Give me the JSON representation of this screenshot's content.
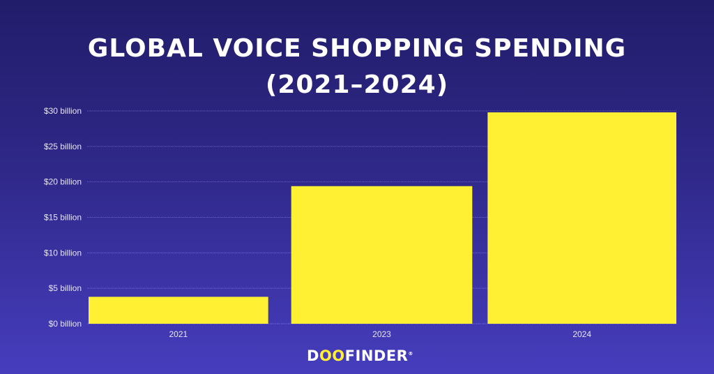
{
  "chart_data": {
    "type": "bar",
    "title_line1": "GLOBAL VOICE SHOPPING SPENDING",
    "title_line2": "(2021–2024)",
    "categories": [
      "2021",
      "2023",
      "2024"
    ],
    "values": [
      3.8,
      19.4,
      29.8
    ],
    "unit": "billion USD",
    "ylim": [
      0,
      30
    ],
    "yticks": [
      0,
      5,
      10,
      15,
      20,
      25,
      30
    ],
    "ytick_labels": [
      "$0 billion",
      "$5 billion",
      "$10 billion",
      "$15 billion",
      "$20 billion",
      "$25 billion",
      "$30 billion"
    ],
    "grid": true,
    "bar_color": "#fff033",
    "background_colors": [
      "#221d6a",
      "#463dbd"
    ]
  },
  "brand": {
    "logo_text_d": "D",
    "logo_text_oo": "OO",
    "logo_text_rest": "FINDER",
    "logo_mark": "®"
  }
}
